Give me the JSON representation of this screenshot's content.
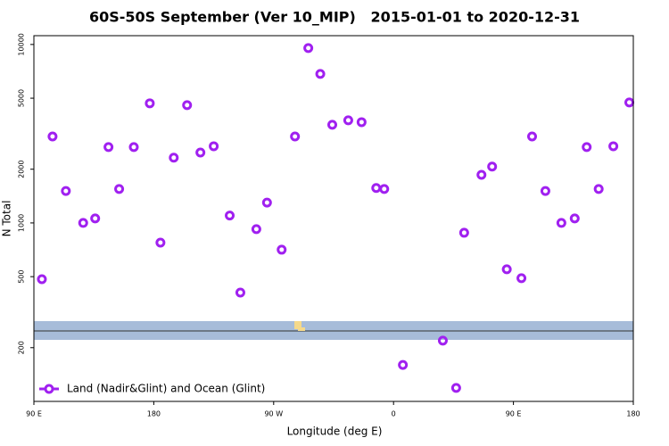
{
  "chart_data": {
    "type": "scatter",
    "title": "60S-50S September (Ver 10_MIP)   2015-01-01 to 2020-12-31",
    "x_label": "Longitude (deg E)",
    "y_label": "N Total",
    "y_log": true,
    "xlim": [
      90,
      540
    ],
    "ylim": [
      100,
      11200
    ],
    "xticks": [
      {
        "value": 90,
        "label": "90 E"
      },
      180,
      {
        "value": 270,
        "label": "90 W"
      },
      {
        "value": 360,
        "label": "0"
      },
      {
        "value": 450,
        "label": "90 E"
      },
      {
        "value": 540,
        "label": "180"
      }
    ],
    "yticks": [
      200,
      500,
      1000,
      2000,
      5000,
      10000
    ],
    "series": [
      {
        "name": "Land (Nadir&Glint) and Ocean (Glint)",
        "color": "#a020f0",
        "x": [
          96,
          104,
          114,
          127,
          136,
          146,
          154,
          165,
          177,
          185,
          195,
          205,
          215,
          225,
          237,
          245,
          257,
          265,
          276,
          286,
          296,
          305,
          314,
          326,
          336,
          347,
          353,
          367,
          397,
          407,
          413,
          426,
          434,
          445,
          456,
          464,
          474,
          486,
          496,
          505,
          514,
          525,
          537
        ],
        "values": [
          484,
          3050,
          1510,
          1000,
          1060,
          2660,
          1550,
          2660,
          4680,
          776,
          2320,
          4570,
          2480,
          2690,
          1100,
          407,
          923,
          1300,
          708,
          3050,
          9550,
          6840,
          3550,
          3760,
          3670,
          1570,
          1550,
          160,
          219,
          119,
          881,
          1860,
          2070,
          550,
          490,
          3050,
          1510,
          1000,
          1060,
          2660,
          1550,
          2690,
          4730
        ]
      }
    ]
  }
}
